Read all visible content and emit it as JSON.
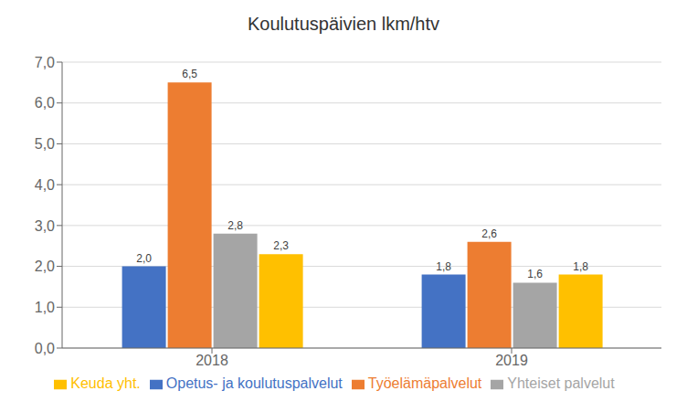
{
  "chart_data": {
    "type": "bar",
    "title": "Koulutuspäivien lkm/htv",
    "categories": [
      "2018",
      "2019"
    ],
    "series": [
      {
        "name": "Opetus- ja koulutuspalvelut",
        "color": "#4472c4",
        "values": [
          2.0,
          1.8
        ],
        "value_labels": [
          "2,0",
          "1,8"
        ]
      },
      {
        "name": "Työelämäpalvelut",
        "color": "#ed7d31",
        "values": [
          6.5,
          2.6
        ],
        "value_labels": [
          "6,5",
          "2,6"
        ]
      },
      {
        "name": "Yhteiset palvelut",
        "color": "#a5a5a5",
        "values": [
          2.8,
          1.6
        ],
        "value_labels": [
          "2,8",
          "1,6"
        ]
      },
      {
        "name": "Keuda yht.",
        "color": "#ffc000",
        "values": [
          2.3,
          1.8
        ],
        "value_labels": [
          "2,3",
          "1,8"
        ]
      }
    ],
    "ylim": [
      0,
      7.0
    ],
    "yticks": [
      {
        "value": 0.0,
        "label": "0,0"
      },
      {
        "value": 1.0,
        "label": "1,0"
      },
      {
        "value": 2.0,
        "label": "2,0"
      },
      {
        "value": 3.0,
        "label": "3,0"
      },
      {
        "value": 4.0,
        "label": "4,0"
      },
      {
        "value": 5.0,
        "label": "5,0"
      },
      {
        "value": 6.0,
        "label": "6,0"
      },
      {
        "value": 7.0,
        "label": "7,0"
      }
    ],
    "grid": true,
    "legend": "bottom",
    "data_labels": true
  }
}
